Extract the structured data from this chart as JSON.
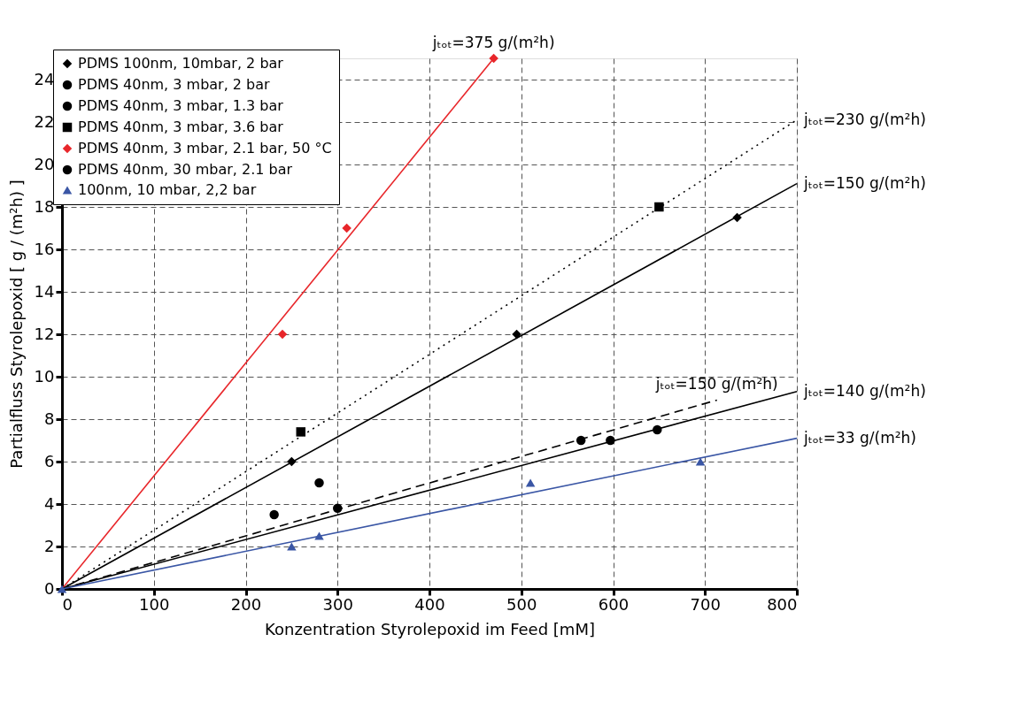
{
  "chart_data": {
    "type": "scatter",
    "xlabel": "Konzentration Styrolepoxid im Feed [mM]",
    "ylabel": "Partialfluss Styrolepoxid [ g / (m²h) ]",
    "xlim": [
      0,
      800
    ],
    "xticks": [
      0,
      100,
      200,
      300,
      400,
      500,
      600,
      700,
      800
    ],
    "ylim": [
      0,
      25
    ],
    "yticks": [
      0,
      2,
      4,
      6,
      8,
      10,
      12,
      14,
      16,
      18,
      20,
      22,
      24
    ],
    "grid": true,
    "legend": "top left",
    "series": [
      {
        "name": "PDMS 100nm, 10mbar, 2 bar",
        "marker": "diamond",
        "color": "#000000",
        "x": [
          250,
          495,
          735
        ],
        "values": [
          6,
          12,
          17.5
        ]
      },
      {
        "name": "PDMS 40nm, 3 mbar, 2 bar",
        "marker": "circle",
        "color": "#000000",
        "x": [
          231,
          280
        ],
        "values": [
          3.5,
          5
        ]
      },
      {
        "name": "PDMS 40nm, 3 mbar, 1.3 bar",
        "marker": "circle",
        "color": "#000000",
        "x": [
          300,
          648
        ],
        "values": [
          3.8,
          7.5
        ]
      },
      {
        "name": "PDMS 40nm, 3 mbar, 3.6 bar",
        "marker": "square",
        "color": "#000000",
        "x": [
          260,
          650
        ],
        "values": [
          7.4,
          18
        ]
      },
      {
        "name": "PDMS 40nm, 3 mbar, 2.1 bar, 50 °C",
        "marker": "diamond",
        "color": "#e8262a",
        "x": [
          240,
          310,
          470
        ],
        "values": [
          12,
          17,
          25
        ]
      },
      {
        "name": "PDMS 40nm, 30 mbar, 2.1 bar",
        "marker": "circle",
        "color": "#000000",
        "x": [
          565,
          597
        ],
        "values": [
          7,
          7
        ]
      },
      {
        "name": "100nm, 10 mbar, 2,2 bar",
        "marker": "triangle",
        "color": "#3a56a5",
        "x": [
          0,
          250,
          280,
          510,
          695
        ],
        "values": [
          0,
          2,
          2.5,
          5,
          6
        ]
      },
      {
        "type": "line",
        "marker": "none",
        "line_style": "solid",
        "color": "#e8262a",
        "x": [
          0,
          470
        ],
        "values": [
          0,
          25
        ]
      },
      {
        "type": "line",
        "marker": "none",
        "line_style": "dotted",
        "color": "#000000",
        "x": [
          0,
          800
        ],
        "values": [
          0,
          22.1
        ]
      },
      {
        "type": "line",
        "marker": "none",
        "line_style": "solid",
        "color": "#000000",
        "x": [
          0,
          800
        ],
        "values": [
          0,
          19.1
        ]
      },
      {
        "type": "line",
        "marker": "none",
        "line_style": "dashed",
        "color": "#000000",
        "x": [
          0,
          713
        ],
        "values": [
          0,
          8.9
        ]
      },
      {
        "type": "line",
        "marker": "none",
        "line_style": "solid",
        "color": "#000000",
        "x": [
          0,
          800
        ],
        "values": [
          0,
          9.3
        ]
      },
      {
        "type": "line",
        "marker": "none",
        "line_style": "solid",
        "color": "#3a56a5",
        "x": [
          0,
          800
        ],
        "values": [
          0,
          7.1
        ]
      }
    ],
    "annotations": [
      {
        "text": "jₜₒₜ=375 g/(m²h)",
        "x": 470,
        "y": 25
      },
      {
        "text": "jₜₒₜ=230 g/(m²h)",
        "x": 800,
        "y": 22.1
      },
      {
        "text": "jₜₒₜ=150 g/(m²h)",
        "x": 800,
        "y": 19.1
      },
      {
        "text": "jₜₒₜ=150 g/(m²h)",
        "x": 713,
        "y": 8.9
      },
      {
        "text": "jₜₒₜ=140 g/(m²h)",
        "x": 800,
        "y": 9.3
      },
      {
        "text": "jₜₒₜ=33 g/(m²h)",
        "x": 800,
        "y": 7.1
      }
    ]
  }
}
